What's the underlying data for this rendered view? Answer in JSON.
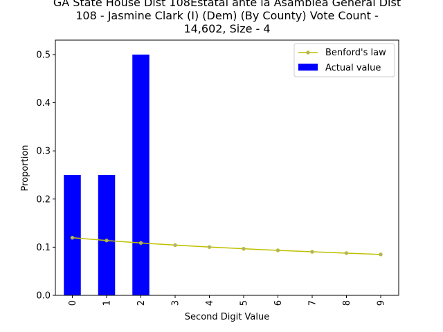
{
  "chart_data": {
    "type": "bar",
    "title_lines": [
      "GA State House Dist 108Estatal ante la Asamblea General Dist",
      "108 - Jasmine Clark (I) (Dem) (By County) Vote Count -",
      "14,602, Size - 4"
    ],
    "xlabel": "Second Digit Value",
    "ylabel": "Proportion",
    "categories": [
      "0",
      "1",
      "2",
      "3",
      "4",
      "5",
      "6",
      "7",
      "8",
      "9"
    ],
    "ylim": [
      0,
      0.53
    ],
    "yticks": [
      "0.0",
      "0.1",
      "0.2",
      "0.3",
      "0.4",
      "0.5"
    ],
    "ytick_values": [
      0,
      0.1,
      0.2,
      0.3,
      0.4,
      0.5
    ],
    "series": [
      {
        "name": "Actual value",
        "kind": "bar",
        "color": "#0000ff",
        "values": [
          0.25,
          0.25,
          0.5,
          0,
          0,
          0,
          0,
          0,
          0,
          0
        ]
      },
      {
        "name": "Benford's law",
        "kind": "line",
        "color": "#bfbf00",
        "values": [
          0.1197,
          0.1139,
          0.1088,
          0.1043,
          0.1003,
          0.0967,
          0.0934,
          0.0904,
          0.0876,
          0.085
        ]
      }
    ],
    "legend_position": "top-right",
    "grid": false
  }
}
